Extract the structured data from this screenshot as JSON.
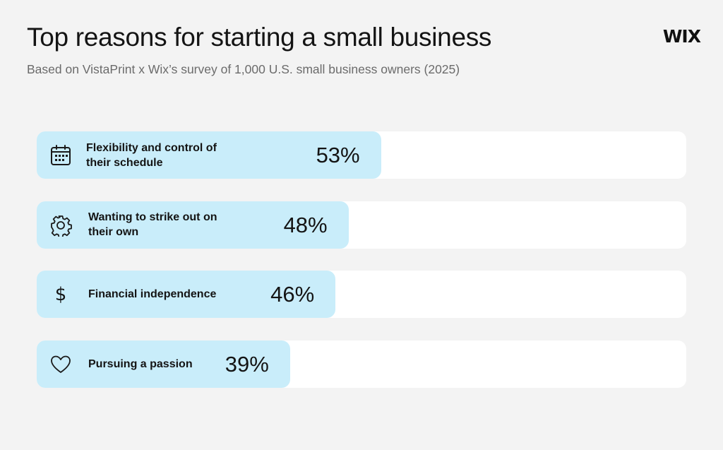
{
  "header": {
    "title": "Top reasons for starting a small business",
    "subtitle": "Based on VistaPrint x Wix’s survey of 1,000 U.S. small business owners (2025)",
    "logo": "WIX"
  },
  "colors": {
    "fill": "#c9edfa",
    "track": "#ffffff",
    "background": "#f3f3f3"
  },
  "chart_data": {
    "type": "bar",
    "orientation": "horizontal",
    "title": "Top reasons for starting a small business",
    "subtitle": "Based on VistaPrint x Wix’s survey of 1,000 U.S. small business owners (2025)",
    "xlim": [
      0,
      100
    ],
    "grid": false,
    "categories": [
      "Flexibility and control of their schedule",
      "Wanting to strike out on their own",
      "Financial independence",
      "Pursuing a passion"
    ],
    "values": [
      53,
      48,
      46,
      39
    ],
    "value_labels": [
      "53%",
      "48%",
      "46%",
      "39%"
    ],
    "icons": [
      "calendar-icon",
      "gear-icon",
      "dollar-icon",
      "heart-icon"
    ]
  }
}
